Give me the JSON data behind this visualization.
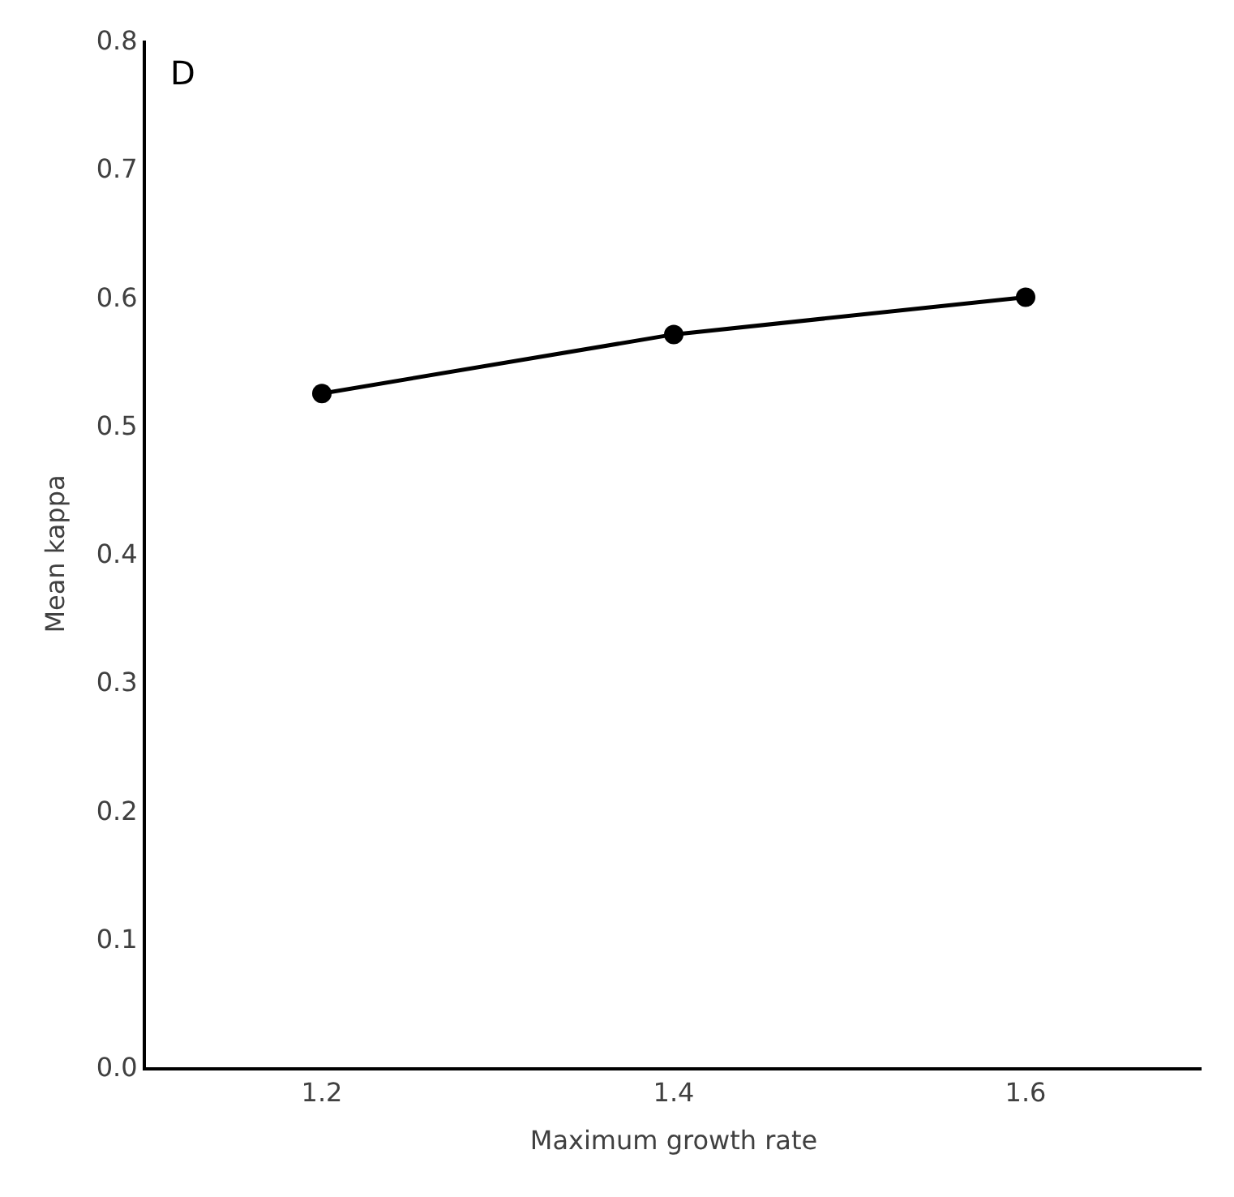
{
  "chart_data": {
    "type": "line",
    "xlabel": "Maximum growth rate",
    "ylabel": "Mean kappa",
    "annotations": [
      "D"
    ],
    "x": [
      1.2,
      1.4,
      1.6
    ],
    "series": [
      {
        "color": "#000000",
        "values": [
          0.525,
          0.571,
          0.6
        ]
      }
    ],
    "xlim": [
      1.1,
      1.7
    ],
    "xticks": [
      1.2,
      1.4,
      1.6
    ],
    "ylim": [
      0,
      0.8
    ],
    "yticks": [
      {
        "value": 0,
        "label": "0.0"
      },
      0.1,
      0.2,
      0.3,
      0.4,
      0.5,
      0.6,
      0.7,
      0.8
    ],
    "legend": false,
    "marker": "circle",
    "line_style": "solid"
  }
}
